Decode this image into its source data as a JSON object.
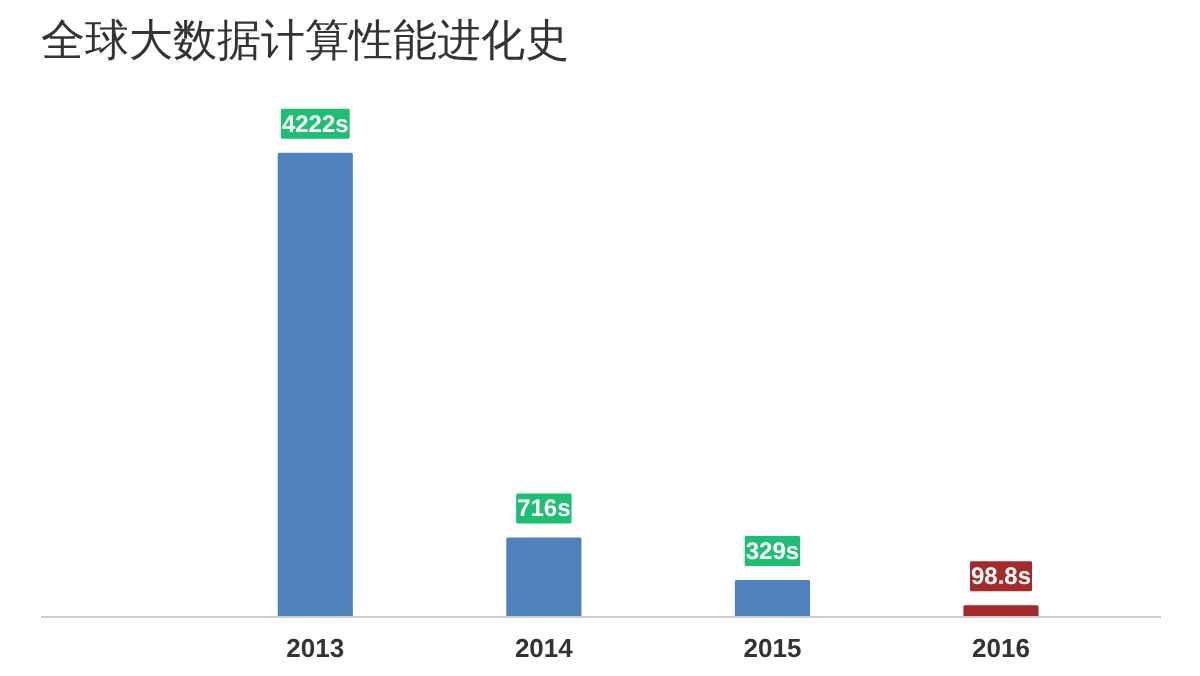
{
  "chart_data": {
    "type": "bar",
    "title": "全球大数据计算性能进化史",
    "categories": [
      "2013",
      "2014",
      "2015",
      "2016"
    ],
    "values": [
      4222,
      716,
      329,
      98.8
    ],
    "colors": [
      "#4f81bd",
      "#4f81bd",
      "#4f81bd",
      "#a52a2a"
    ],
    "value_labels": [
      "4222s",
      "716s",
      "329s",
      "98.8s"
    ],
    "grid": false
  }
}
